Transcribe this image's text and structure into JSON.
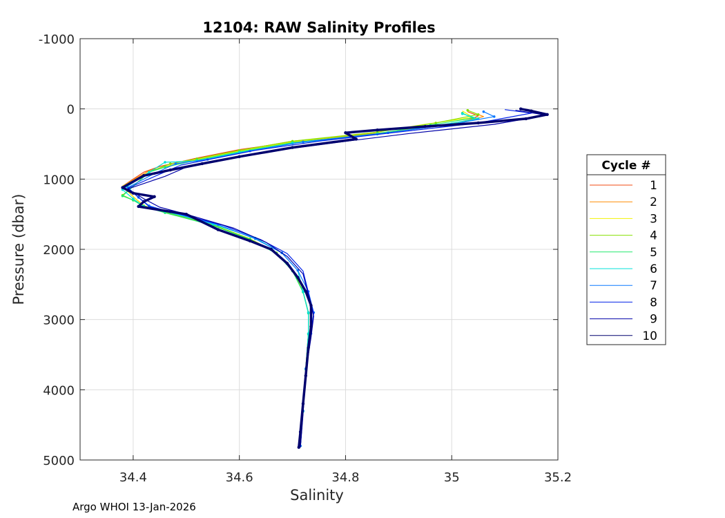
{
  "chart_data": {
    "type": "line",
    "title": "12104: RAW Salinity Profiles",
    "xlabel": "Salinity",
    "ylabel": "Pressure (dbar)",
    "xlim": [
      34.3,
      35.2
    ],
    "ylim": [
      -1000,
      5000
    ],
    "y_reversed": true,
    "xticks": [
      34.4,
      34.6,
      34.8,
      35,
      35.2
    ],
    "xtick_labels": [
      "34.4",
      "34.6",
      "34.8",
      "35",
      "35.2"
    ],
    "yticks": [
      -1000,
      0,
      1000,
      2000,
      3000,
      4000,
      5000
    ],
    "ytick_labels": [
      "-1000",
      "0",
      "1000",
      "2000",
      "3000",
      "4000",
      "5000"
    ],
    "grid": true,
    "legend": {
      "title": "Cycle #",
      "position": "outside-right"
    },
    "series": [
      {
        "name": "1",
        "color": "#f04a10",
        "marker_points": false,
        "salinity": [
          35.03,
          35.05,
          35.02,
          34.9,
          34.72,
          34.6,
          34.52,
          34.45,
          34.42,
          34.38,
          34.4,
          34.42,
          34.46,
          34.55,
          34.62,
          34.67,
          34.7,
          34.72,
          34.73,
          34.73,
          34.725,
          34.72,
          34.715
        ],
        "pressure": [
          40,
          100,
          200,
          320,
          450,
          580,
          700,
          820,
          900,
          1100,
          1250,
          1380,
          1470,
          1650,
          1850,
          2050,
          2300,
          2600,
          2900,
          3200,
          3700,
          4300,
          4800
        ]
      },
      {
        "name": "2",
        "color": "#ff8c00",
        "marker_points": false,
        "salinity": [
          35.04,
          35.06,
          35.0,
          34.88,
          34.7,
          34.6,
          34.52,
          34.46,
          34.43,
          34.38,
          34.4,
          34.42,
          34.46,
          34.55,
          34.62,
          34.67,
          34.7,
          34.72,
          34.73,
          34.73,
          34.725,
          34.72,
          34.715
        ],
        "pressure": [
          50,
          110,
          210,
          330,
          460,
          590,
          710,
          830,
          880,
          1100,
          1250,
          1380,
          1470,
          1650,
          1850,
          2050,
          2300,
          2600,
          2900,
          3200,
          3700,
          4300,
          4800
        ]
      },
      {
        "name": "3",
        "color": "#f2f200",
        "marker_points": false,
        "salinity": [
          35.02,
          35.04,
          34.95,
          34.85,
          34.7,
          34.6,
          34.52,
          34.46,
          34.43,
          34.38,
          34.4,
          34.42,
          34.46,
          34.55,
          34.62,
          34.67,
          34.7,
          34.72,
          34.73,
          34.73,
          34.725,
          34.72,
          34.715
        ],
        "pressure": [
          30,
          120,
          220,
          340,
          470,
          600,
          720,
          820,
          900,
          1100,
          1250,
          1380,
          1470,
          1650,
          1850,
          2050,
          2300,
          2600,
          2900,
          3200,
          3700,
          4300,
          4800
        ]
      },
      {
        "name": "4",
        "color": "#84e000",
        "marker_points": true,
        "salinity": [
          35.03,
          35.05,
          34.97,
          34.86,
          34.7,
          34.6,
          34.52,
          34.47,
          34.43,
          34.38,
          34.4,
          34.42,
          34.46,
          34.55,
          34.62,
          34.67,
          34.7,
          34.72,
          34.73,
          34.73,
          34.725,
          34.72,
          34.715
        ],
        "pressure": [
          20,
          80,
          200,
          330,
          460,
          590,
          710,
          780,
          900,
          1230,
          1300,
          1380,
          1470,
          1650,
          1850,
          2050,
          2300,
          2600,
          2900,
          3200,
          3700,
          4300,
          4800
        ]
      },
      {
        "name": "5",
        "color": "#22e86e",
        "marker_points": true,
        "salinity": [
          35.02,
          35.04,
          34.96,
          34.86,
          34.7,
          34.6,
          34.52,
          34.46,
          34.43,
          34.38,
          34.4,
          34.42,
          34.46,
          34.55,
          34.62,
          34.67,
          34.7,
          34.72,
          34.73,
          34.73,
          34.725,
          34.72,
          34.715
        ],
        "pressure": [
          60,
          130,
          230,
          350,
          480,
          610,
          730,
          830,
          900,
          1240,
          1300,
          1390,
          1480,
          1660,
          1860,
          2060,
          2310,
          2610,
          2910,
          3210,
          3710,
          4310,
          4800
        ]
      },
      {
        "name": "6",
        "color": "#00e0d8",
        "marker_points": true,
        "salinity": [
          35.02,
          35.05,
          34.97,
          34.86,
          34.7,
          34.6,
          34.52,
          34.46,
          34.43,
          34.38,
          34.4,
          34.42,
          34.46,
          34.55,
          34.63,
          34.68,
          34.71,
          34.72,
          34.73,
          34.73,
          34.725,
          34.72,
          34.715
        ],
        "pressure": [
          70,
          140,
          240,
          360,
          490,
          620,
          740,
          760,
          900,
          1150,
          1280,
          1390,
          1460,
          1640,
          1840,
          2050,
          2300,
          2600,
          2900,
          3200,
          3700,
          4300,
          4800
        ]
      },
      {
        "name": "7",
        "color": "#0a78ff",
        "marker_points": true,
        "salinity": [
          35.06,
          35.08,
          35.0,
          34.88,
          34.72,
          34.62,
          34.54,
          34.48,
          34.44,
          34.39,
          34.41,
          34.43,
          34.47,
          34.56,
          34.63,
          34.68,
          34.71,
          34.73,
          34.74,
          34.735,
          34.725,
          34.72,
          34.715
        ],
        "pressure": [
          40,
          110,
          220,
          340,
          470,
          600,
          720,
          780,
          920,
          1120,
          1260,
          1380,
          1470,
          1650,
          1850,
          2050,
          2300,
          2600,
          2900,
          3200,
          3700,
          4300,
          4800
        ]
      },
      {
        "name": "8",
        "color": "#0020e8",
        "marker_points": false,
        "salinity": [
          35.1,
          35.15,
          35.05,
          34.9,
          34.75,
          34.63,
          34.55,
          34.49,
          34.45,
          34.39,
          34.41,
          34.43,
          34.48,
          34.57,
          34.64,
          34.69,
          34.72,
          34.73,
          34.74,
          34.735,
          34.725,
          34.72,
          34.715
        ],
        "pressure": [
          10,
          60,
          200,
          330,
          460,
          590,
          710,
          800,
          930,
          1130,
          1260,
          1390,
          1480,
          1660,
          1860,
          2060,
          2310,
          2610,
          2910,
          3210,
          3710,
          4310,
          4800
        ]
      },
      {
        "name": "9",
        "color": "#0000a8",
        "marker_points": false,
        "salinity": [
          35.12,
          35.18,
          35.08,
          34.92,
          34.78,
          34.65,
          34.57,
          34.5,
          34.46,
          34.39,
          34.42,
          34.45,
          34.5,
          34.59,
          34.65,
          34.69,
          34.72,
          34.73,
          34.74,
          34.735,
          34.725,
          34.72,
          34.715
        ],
        "pressure": [
          20,
          90,
          220,
          350,
          480,
          610,
          730,
          830,
          960,
          1140,
          1280,
          1400,
          1500,
          1700,
          1900,
          2100,
          2350,
          2650,
          2950,
          3250,
          3750,
          4350,
          4820
        ]
      },
      {
        "name": "10",
        "color": "#00006e",
        "marker_points": true,
        "salinity": [
          35.13,
          35.15,
          35.18,
          35.14,
          35.05,
          34.95,
          34.86,
          34.8,
          34.82,
          34.7,
          34.6,
          34.53,
          34.47,
          34.42,
          34.38,
          34.4,
          34.44,
          34.42,
          34.41,
          34.5,
          34.56,
          34.62,
          34.66,
          34.69,
          34.71,
          34.725,
          34.735,
          34.735,
          34.73,
          34.725,
          34.72,
          34.715,
          34.712
        ],
        "pressure": [
          0,
          30,
          80,
          140,
          200,
          250,
          300,
          340,
          430,
          550,
          680,
          780,
          870,
          950,
          1120,
          1200,
          1250,
          1320,
          1390,
          1500,
          1720,
          1880,
          2000,
          2200,
          2400,
          2600,
          2800,
          3100,
          3400,
          3800,
          4200,
          4600,
          4820
        ]
      }
    ]
  },
  "footer": "Argo WHOI 13-Jan-2026"
}
